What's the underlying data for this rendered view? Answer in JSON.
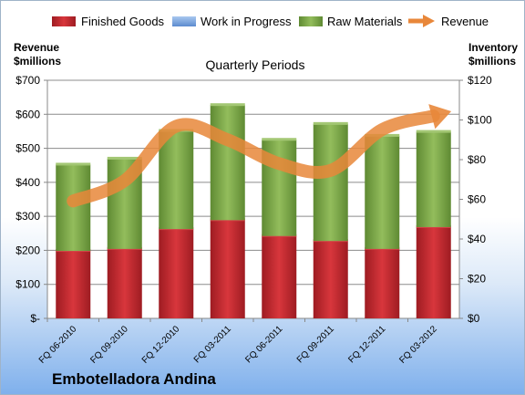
{
  "chart_data": {
    "type": "bar",
    "subtitle": "Quarterly Periods",
    "company": "Embotelladora Andina",
    "left_axis_label": [
      "Revenue",
      "$millions"
    ],
    "right_axis_label": [
      "Inventory",
      "$millions"
    ],
    "categories": [
      "FQ 06-2010",
      "FQ 09-2010",
      "FQ 12-2010",
      "FQ 03-2011",
      "FQ 06-2011",
      "FQ 09-2011",
      "FQ 12-2011",
      "FQ 03-2012"
    ],
    "stacked": true,
    "series": [
      {
        "name": "Finished Goods",
        "color": "#c0282e",
        "axis": "right",
        "values": [
          34,
          35,
          45,
          49.5,
          41.5,
          39,
          35,
          46
        ]
      },
      {
        "name": "Work in Progress",
        "color": "#6f9fd8",
        "axis": "right",
        "values": [
          0,
          0,
          0,
          0,
          0,
          0,
          0,
          0
        ]
      },
      {
        "name": "Raw Materials",
        "color": "#7fa84a",
        "axis": "right",
        "values": [
          43.5,
          45.5,
          49.5,
          58,
          48.5,
          59,
          57,
          48
        ]
      }
    ],
    "line_series": {
      "name": "Revenue",
      "color": "#e8873a",
      "axis": "left",
      "values": [
        345,
        405,
        565,
        525,
        455,
        435,
        555,
        595
      ]
    },
    "left_axis": {
      "min": 0,
      "max": 700,
      "step": 100,
      "tick_labels": [
        "$-",
        "$100",
        "$200",
        "$300",
        "$400",
        "$500",
        "$600",
        "$700"
      ]
    },
    "right_axis": {
      "min": 0,
      "max": 120,
      "step": 20,
      "tick_labels": [
        "$0",
        "$20",
        "$40",
        "$60",
        "$80",
        "$100",
        "$120"
      ]
    },
    "grid": true,
    "legend_position": "top"
  },
  "legend": [
    "Finished Goods",
    "Work in Progress",
    "Raw Materials",
    "Revenue"
  ]
}
